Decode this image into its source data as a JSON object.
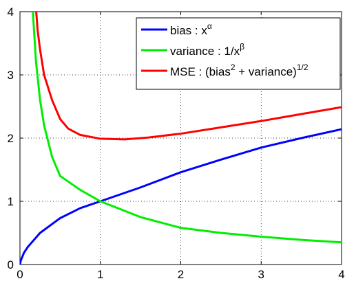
{
  "chart_data": {
    "type": "line",
    "xlim": [
      0,
      4
    ],
    "ylim": [
      0,
      4
    ],
    "x_ticks": [
      0,
      1,
      2,
      3,
      4
    ],
    "y_ticks": [
      0,
      1,
      2,
      3,
      4
    ],
    "x_tick_labels": [
      "0",
      "1",
      "2",
      "3",
      "4"
    ],
    "y_tick_labels": [
      "0",
      "1",
      "2",
      "3",
      "4"
    ],
    "grid": true,
    "legend_position": "top-right",
    "series": [
      {
        "name": "bias : x^α",
        "color": "#0000ff",
        "x": [
          0,
          0.01,
          0.05,
          0.1,
          0.25,
          0.5,
          0.75,
          1,
          1.5,
          2,
          2.5,
          3,
          3.5,
          4
        ],
        "y": [
          0,
          0.063,
          0.187,
          0.282,
          0.5,
          0.734,
          0.892,
          1.0,
          1.22,
          1.46,
          1.66,
          1.85,
          2.0,
          2.14
        ]
      },
      {
        "name": "variance : 1/x^β",
        "color": "#00ee00",
        "x": [
          0.15,
          0.2,
          0.25,
          0.3,
          0.4,
          0.5,
          0.75,
          1,
          1.5,
          2,
          2.5,
          3,
          3.5,
          4
        ],
        "y": [
          4.2,
          3.2,
          2.6,
          2.2,
          1.7,
          1.4,
          1.18,
          1.0,
          0.75,
          0.58,
          0.5,
          0.44,
          0.39,
          0.35
        ]
      },
      {
        "name": "MSE : (bias^2 + variance)^1/2",
        "color": "#ff0000",
        "x": [
          0.19,
          0.22,
          0.25,
          0.3,
          0.4,
          0.5,
          0.6,
          0.75,
          1,
          1.3,
          1.6,
          2,
          2.5,
          3,
          3.5,
          4
        ],
        "y": [
          4.2,
          3.7,
          3.4,
          3.0,
          2.6,
          2.3,
          2.15,
          2.05,
          1.99,
          1.98,
          2.01,
          2.07,
          2.17,
          2.27,
          2.38,
          2.49
        ]
      }
    ]
  },
  "legend": {
    "bias": {
      "base": "bias : x",
      "sup": "α"
    },
    "variance": {
      "base": "variance : 1/x",
      "sup": "β"
    },
    "mse": {
      "part1": "MSE : (bias",
      "sup1": "2",
      "part2": " + variance)",
      "sup2": "1/2"
    }
  }
}
